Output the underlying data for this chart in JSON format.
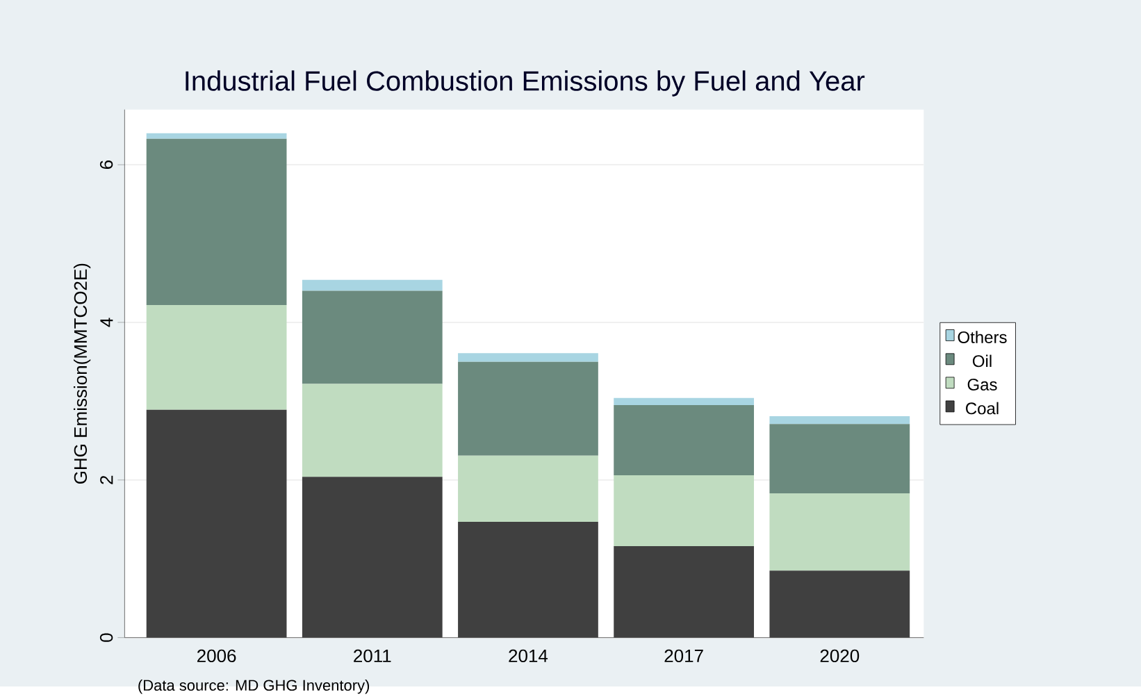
{
  "chart_data": {
    "type": "bar",
    "title": "Industrial Fuel Combustion Emissions by Fuel and Year",
    "ylabel": "GHG Emission(MMTCO2E)",
    "annotations": [
      "(Data source: MD GHG Inventory)"
    ],
    "categories": [
      "2006",
      "2011",
      "2014",
      "2017",
      "2020"
    ],
    "stacked": true,
    "series": [
      {
        "name": "Coal",
        "color": "#404040",
        "values": [
          2.89,
          2.04,
          1.47,
          1.16,
          0.85
        ]
      },
      {
        "name": "Gas",
        "color": "#c0dcc0",
        "values": [
          1.33,
          1.18,
          0.84,
          0.9,
          0.98
        ]
      },
      {
        "name": "Oil",
        "color": "#6b8a7e",
        "values": [
          2.11,
          1.18,
          1.19,
          0.89,
          0.88
        ]
      },
      {
        "name": "Others",
        "color": "#a8d5e2",
        "values": [
          0.07,
          0.14,
          0.11,
          0.09,
          0.1
        ]
      }
    ],
    "ylim": [
      0,
      6.7
    ],
    "yticks": [
      0,
      2,
      4,
      6
    ],
    "grid": "y",
    "legend": "right"
  }
}
